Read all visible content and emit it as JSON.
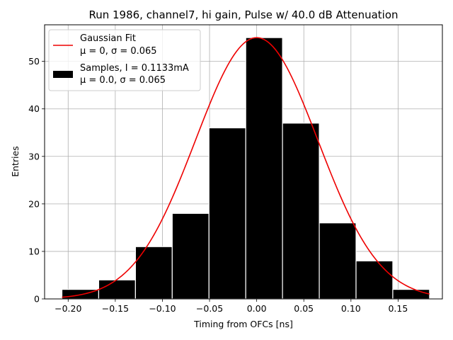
{
  "chart_data": {
    "type": "bar",
    "title": "Run 1986, channel7, hi gain, Pulse w/ 40.0 dB Attenuation",
    "xlabel": "Timing from OFCs [ns]",
    "ylabel": "Entries",
    "xlim": [
      -0.225,
      0.197
    ],
    "ylim": [
      0,
      57.7
    ],
    "xticks": [
      -0.2,
      -0.15,
      -0.1,
      -0.05,
      0.0,
      0.05,
      0.1,
      0.15
    ],
    "xtick_labels": [
      "−0.20",
      "−0.15",
      "−0.10",
      "−0.05",
      "0.00",
      "0.05",
      "0.10",
      "0.15"
    ],
    "yticks": [
      0,
      10,
      20,
      30,
      40,
      50
    ],
    "ytick_labels": [
      "0",
      "10",
      "20",
      "30",
      "40",
      "50"
    ],
    "grid": true,
    "legend_position": "top-left",
    "histogram": {
      "name_line1": "Samples, I = 0.1133mA",
      "name_line2": "μ = 0.0, σ = 0.065",
      "color": "#000000",
      "edge_color": "#ffffff",
      "bin_edges": [
        -0.2066,
        -0.1676,
        -0.1286,
        -0.0896,
        -0.0506,
        -0.0116,
        0.0274,
        0.0664,
        0.1054,
        0.1444,
        0.1834
      ],
      "counts": [
        2,
        4,
        11,
        18,
        36,
        55,
        37,
        16,
        8,
        2
      ]
    },
    "fit": {
      "name_line1": "Gaussian Fit",
      "name_line2": "μ = 0, σ = 0.065",
      "color": "#ee0000",
      "mu": 0.0,
      "sigma": 0.065,
      "amplitude": 55,
      "x_range": [
        -0.2066,
        0.1834
      ]
    }
  }
}
